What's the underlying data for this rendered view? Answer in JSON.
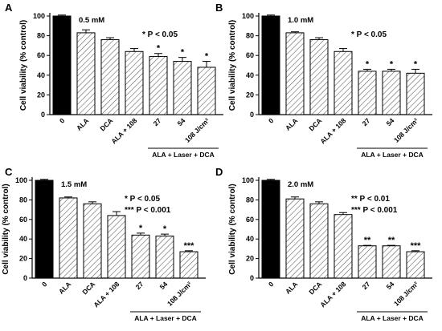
{
  "chart_data": [
    {
      "type": "bar",
      "panel": "A",
      "concentration": "0.5 mM",
      "ylabel": "Cell viability (% control)",
      "ylim": [
        0,
        100
      ],
      "yticks": [
        0,
        20,
        40,
        60,
        80,
        100
      ],
      "categories": [
        "0",
        "ALA",
        "DCA",
        "ALA + 108",
        "27",
        "54",
        "108 J/cm²"
      ],
      "values": [
        100,
        83,
        76,
        64,
        59,
        54,
        48
      ],
      "errors": [
        1,
        3,
        2,
        3,
        3,
        4,
        6
      ],
      "stars": [
        "",
        "",
        "",
        "",
        "*",
        "*",
        "*"
      ],
      "annotations": [
        "* P < 0.05"
      ],
      "group_label": "ALA + Laser + DCA"
    },
    {
      "type": "bar",
      "panel": "B",
      "concentration": "1.0 mM",
      "ylabel": "Cell viability (% control)",
      "ylim": [
        0,
        100
      ],
      "yticks": [
        0,
        20,
        40,
        60,
        80,
        100
      ],
      "categories": [
        "0",
        "ALA",
        "DCA",
        "ALA + 108",
        "27",
        "54",
        "108 J/cm²"
      ],
      "values": [
        100,
        83,
        76,
        64,
        44,
        44,
        42
      ],
      "errors": [
        1,
        1,
        2,
        3,
        2,
        2,
        4
      ],
      "stars": [
        "",
        "",
        "",
        "",
        "*",
        "*",
        "*"
      ],
      "annotations": [
        "* P < 0.05"
      ],
      "group_label": "ALA + Laser + DCA"
    },
    {
      "type": "bar",
      "panel": "C",
      "concentration": "1.5 mM",
      "ylabel": "Cell viability (% control)",
      "ylim": [
        0,
        100
      ],
      "yticks": [
        0,
        20,
        40,
        60,
        80,
        100
      ],
      "categories": [
        "0",
        "ALA",
        "DCA",
        "ALA + 108",
        "27",
        "54",
        "108 J/cm²"
      ],
      "values": [
        100,
        82,
        76,
        64,
        44,
        43,
        27
      ],
      "errors": [
        1,
        1,
        2,
        4,
        2,
        2,
        1
      ],
      "stars": [
        "",
        "",
        "",
        "",
        "*",
        "*",
        "***"
      ],
      "annotations": [
        "* P < 0.05",
        "*** P < 0.001"
      ],
      "group_label": "ALA + Laser + DCA"
    },
    {
      "type": "bar",
      "panel": "D",
      "concentration": "2.0 mM",
      "ylabel": "Cell viability (% control)",
      "ylim": [
        0,
        100
      ],
      "yticks": [
        0,
        20,
        40,
        60,
        80,
        100
      ],
      "categories": [
        "0",
        "ALA",
        "DCA",
        "ALA + 108",
        "27",
        "54",
        "108 J/cm²"
      ],
      "values": [
        100,
        81,
        76,
        65,
        33,
        33,
        27
      ],
      "errors": [
        1,
        2,
        2,
        2,
        0.5,
        0.5,
        1
      ],
      "stars": [
        "",
        "",
        "",
        "",
        "**",
        "**",
        "***"
      ],
      "annotations": [
        "** P < 0.01",
        "*** P < 0.001"
      ],
      "group_label": "ALA + Laser + DCA"
    }
  ]
}
